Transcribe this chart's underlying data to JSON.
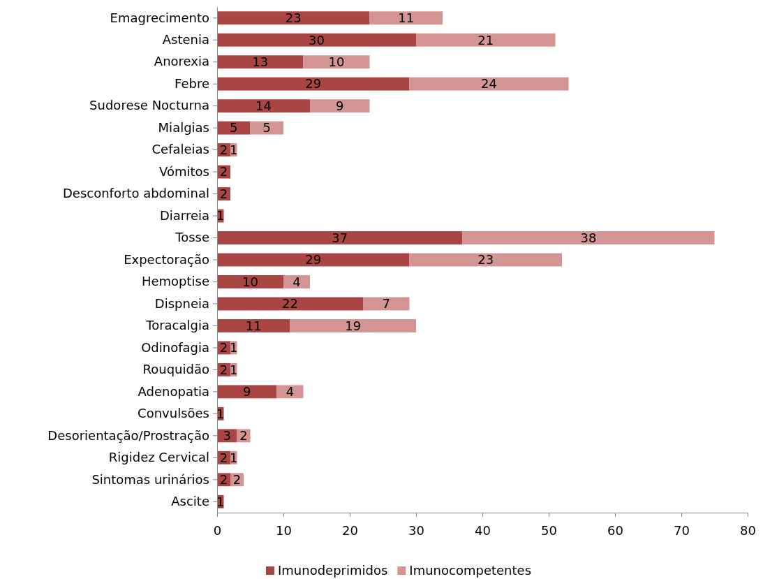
{
  "chart_data": {
    "type": "bar",
    "orientation": "horizontal",
    "stacked": true,
    "data_labels": true,
    "legend": "bottom",
    "grid": false,
    "categories": [
      "Emagrecimento",
      "Astenia",
      "Anorexia",
      "Febre",
      "Sudorese Nocturna",
      "Mialgias",
      "Cefaleias",
      "Vómitos",
      "Desconforto abdominal",
      "Diarreia",
      "Tosse",
      "Expectoração",
      "Hemoptise",
      "Dispneia",
      "Toracalgia",
      "Odinofagia",
      "Rouquidão",
      "Adenopatia",
      "Convulsões",
      "Desorientação/Prostração",
      "Rigidez Cervical",
      "Sintomas urinários",
      "Ascite"
    ],
    "series": [
      {
        "name": "Imunodeprimidos",
        "color": "#a94543",
        "values": [
          23,
          30,
          13,
          29,
          14,
          5,
          2,
          2,
          2,
          1,
          37,
          29,
          10,
          22,
          11,
          2,
          2,
          9,
          1,
          3,
          2,
          2,
          1
        ]
      },
      {
        "name": "Imunocompetentes",
        "color": "#d39593",
        "values": [
          11,
          21,
          10,
          24,
          9,
          5,
          1,
          null,
          null,
          null,
          38,
          23,
          4,
          7,
          19,
          1,
          1,
          4,
          null,
          2,
          1,
          2,
          null
        ]
      }
    ],
    "xlim": [
      0,
      80
    ],
    "xticks": [
      0,
      10,
      20,
      30,
      40,
      50,
      60,
      70,
      80
    ]
  }
}
